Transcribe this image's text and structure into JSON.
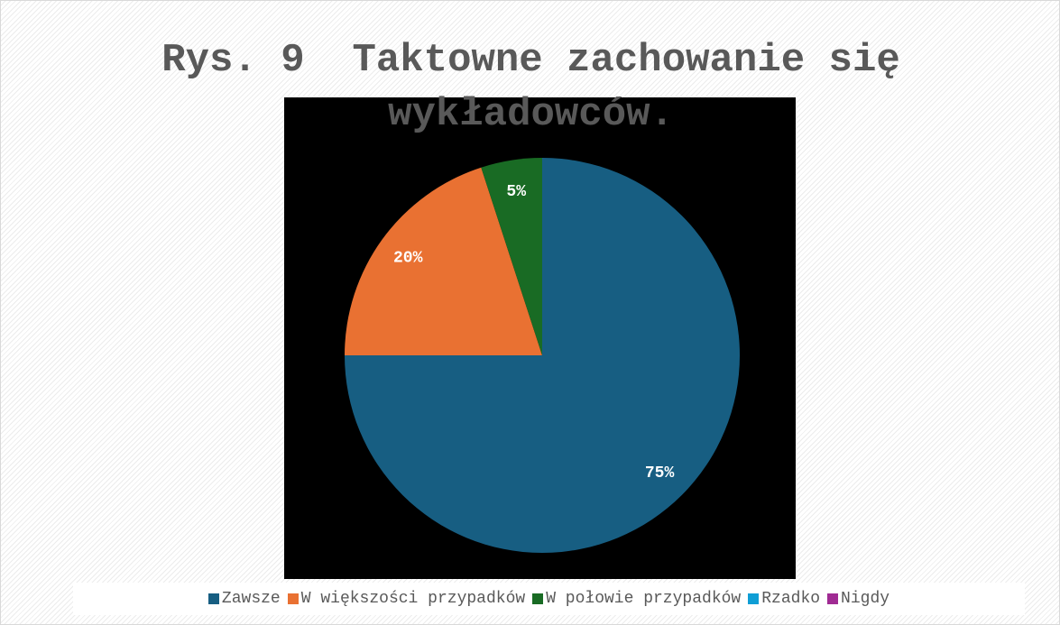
{
  "chart_data": {
    "type": "pie",
    "title": "Rys. 9  Taktowne zachowanie się wykładowców.",
    "categories": [
      "Zawsze",
      "W większości przypadków",
      "W połowie przypadków",
      "Rzadko",
      "Nigdy"
    ],
    "values": [
      75,
      20,
      5,
      0,
      0
    ],
    "value_labels": [
      "75%",
      "20%",
      "5%",
      null,
      null
    ],
    "colors": [
      "#175e82",
      "#e97132",
      "#196b24",
      "#0f9ed5",
      "#a02b93"
    ]
  }
}
